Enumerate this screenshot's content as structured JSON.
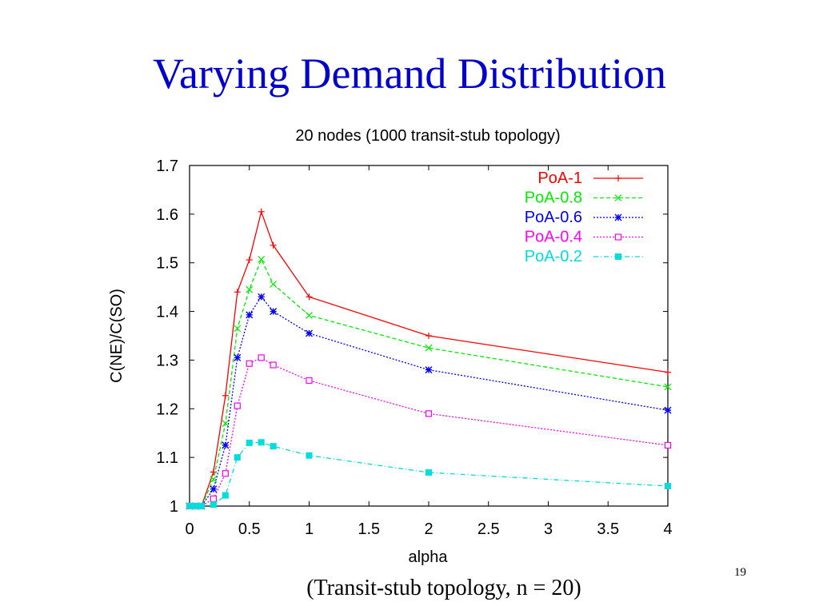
{
  "slide": {
    "title": "Varying Demand Distribution",
    "caption": "(Transit-stub topology, n = 20)",
    "page_number": "19"
  },
  "chart_data": {
    "type": "line",
    "title": "20 nodes (1000 transit-stub topology)",
    "xlabel": "alpha",
    "ylabel": "C(NE)/C(SO)",
    "xlim": [
      0,
      4
    ],
    "ylim": [
      1,
      1.7
    ],
    "xticks": [
      "0",
      "0.5",
      "1",
      "1.5",
      "2",
      "2.5",
      "3",
      "3.5",
      "4"
    ],
    "yticks": [
      "1",
      "1.1",
      "1.2",
      "1.3",
      "1.4",
      "1.5",
      "1.6",
      "1.7"
    ],
    "grid": false,
    "legend_position": "top-right",
    "x": [
      0,
      0.05,
      0.1,
      0.2,
      0.3,
      0.4,
      0.5,
      0.6,
      0.7,
      1,
      2,
      4
    ],
    "series": [
      {
        "name": "PoA-1",
        "color": "#ff0000",
        "dash": "solid",
        "marker": "plus",
        "values": [
          1.0,
          1.0,
          1.0,
          1.07,
          1.227,
          1.44,
          1.506,
          1.605,
          1.536,
          1.43,
          1.35,
          1.275
        ]
      },
      {
        "name": "PoA-0.8",
        "color": "#00ee00",
        "dash": "dashed",
        "marker": "cross",
        "values": [
          1.0,
          1.0,
          1.0,
          1.055,
          1.17,
          1.365,
          1.445,
          1.507,
          1.456,
          1.392,
          1.325,
          1.245
        ]
      },
      {
        "name": "PoA-0.6",
        "color": "#0000ff",
        "dash": "dotted",
        "marker": "star",
        "values": [
          1.0,
          1.0,
          1.0,
          1.035,
          1.125,
          1.305,
          1.393,
          1.43,
          1.4,
          1.355,
          1.28,
          1.197
        ]
      },
      {
        "name": "PoA-0.4",
        "color": "#ff00ff",
        "dash": "dotted",
        "marker": "open-square",
        "values": [
          1.0,
          1.0,
          1.0,
          1.015,
          1.067,
          1.206,
          1.293,
          1.305,
          1.29,
          1.258,
          1.19,
          1.125
        ]
      },
      {
        "name": "PoA-0.2",
        "color": "#00dddd",
        "dash": "dashdot",
        "marker": "filled-square",
        "values": [
          1.0,
          1.0,
          1.0,
          1.003,
          1.022,
          1.1,
          1.13,
          1.131,
          1.123,
          1.104,
          1.069,
          1.041
        ]
      }
    ]
  }
}
